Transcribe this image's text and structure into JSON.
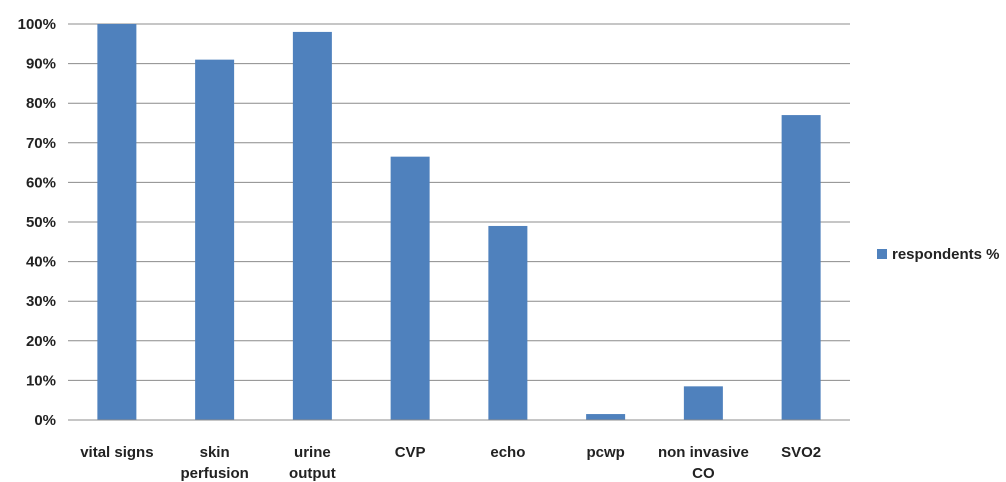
{
  "chart_data": {
    "type": "bar",
    "categories": [
      [
        "vital signs"
      ],
      [
        "skin",
        "perfusion"
      ],
      [
        "urine",
        "output"
      ],
      [
        "CVP"
      ],
      [
        "echo"
      ],
      [
        "pcwp"
      ],
      [
        "non invasive",
        "CO"
      ],
      [
        "SVO2"
      ]
    ],
    "series": [
      {
        "name": "respondents %",
        "values": [
          100,
          91,
          98,
          66.5,
          49,
          1.5,
          8.5,
          77
        ]
      }
    ],
    "ylim": [
      0,
      100
    ],
    "yticks": [
      "0%",
      "10%",
      "20%",
      "30%",
      "40%",
      "50%",
      "60%",
      "70%",
      "80%",
      "90%",
      "100%"
    ],
    "grid": true,
    "legend_position": "right",
    "colors": {
      "bar": "#4f81bd",
      "grid": "#8c8c8c",
      "axis": "#8c8c8c"
    }
  }
}
